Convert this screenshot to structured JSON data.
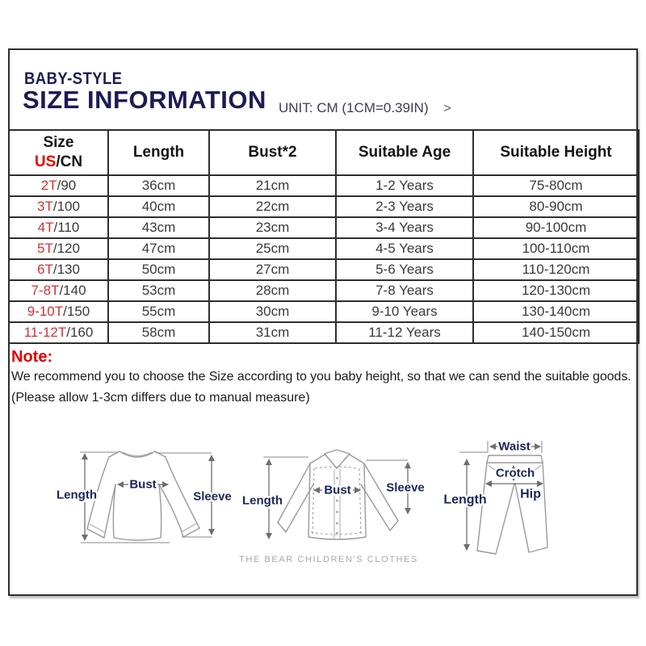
{
  "header": {
    "brand": "BABY-STYLE",
    "title": "SIZE INFORMATION",
    "unit": "UNIT: CM (1CM=0.39IN)",
    "chevron": ">"
  },
  "table": {
    "header": {
      "size_line1": "Size",
      "size_us": "US",
      "size_sep": "/",
      "size_cn": "CN",
      "cols": [
        "Length",
        "Bust*2",
        "Suitable Age",
        "Suitable Height"
      ]
    },
    "rows": [
      {
        "us": "2T",
        "cn": "/90",
        "length": "36cm",
        "bust": "21cm",
        "age": "1-2 Years",
        "height": "75-80cm"
      },
      {
        "us": "3T",
        "cn": "/100",
        "length": "40cm",
        "bust": "22cm",
        "age": "2-3 Years",
        "height": "80-90cm"
      },
      {
        "us": "4T",
        "cn": "/110",
        "length": "43cm",
        "bust": "23cm",
        "age": "3-4 Years",
        "height": "90-100cm"
      },
      {
        "us": "5T",
        "cn": "/120",
        "length": "47cm",
        "bust": "25cm",
        "age": "4-5 Years",
        "height": "100-110cm"
      },
      {
        "us": "6T",
        "cn": "/130",
        "length": "50cm",
        "bust": "27cm",
        "age": "5-6 Years",
        "height": "110-120cm"
      },
      {
        "us": "7-8T",
        "cn": "/140",
        "length": "53cm",
        "bust": "28cm",
        "age": "7-8 Years",
        "height": "120-130cm"
      },
      {
        "us": "9-10T",
        "cn": "/150",
        "length": "55cm",
        "bust": "30cm",
        "age": "9-10 Years",
        "height": "130-140cm"
      },
      {
        "us": "11-12T",
        "cn": "/160",
        "length": "58cm",
        "bust": "31cm",
        "age": "11-12 Years",
        "height": "140-150cm"
      }
    ]
  },
  "note": {
    "label": "Note:",
    "line1": "We recommend you to choose the Size according to you baby height, so that we can send the suitable goods.",
    "line2": "(Please allow 1-3cm differs due to manual measure)"
  },
  "diagrams": {
    "sweatshirt": {
      "length": "Length",
      "bust": "Bust",
      "sleeve": "Sleeve"
    },
    "shirt": {
      "length": "Length",
      "bust": "Bust",
      "sleeve": "Sleeve"
    },
    "pants": {
      "waist": "Waist",
      "crotch": "Crotch",
      "hip": "Hip",
      "length": "Length"
    },
    "footer": "THE BEAR CHILDREN'S CLOTHES"
  },
  "colors": {
    "title_navy": "#1d1b54",
    "label_navy": "#1c2558",
    "accent_red": "#e30000",
    "size_red": "#cc3333",
    "table_border": "#2e2e2e",
    "table_text": "#3a3a3a",
    "unit_text": "#3c3c55",
    "garment_line": "#9a9a9a",
    "footer_gray": "#a8a8a8"
  }
}
